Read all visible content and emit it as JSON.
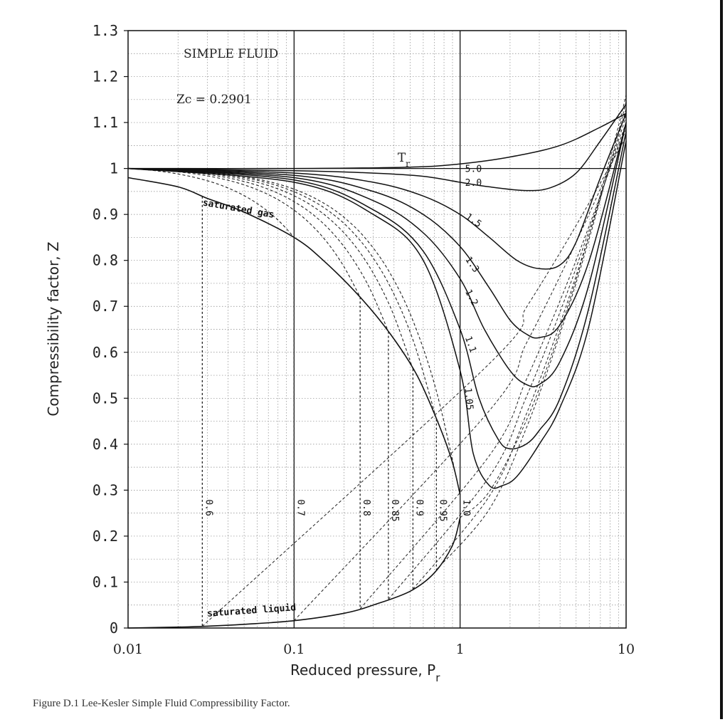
{
  "chart_data": {
    "type": "line",
    "x_scale": "log",
    "xlim": [
      0.01,
      10
    ],
    "ylim": [
      0,
      1.3
    ],
    "x_ticks": [
      "0.01",
      "0.1",
      "1",
      "10"
    ],
    "y_ticks": [
      "0",
      "0.1",
      "0.2",
      "0.3",
      "0.4",
      "0.5",
      "0.6",
      "0.7",
      "0.8",
      "0.9",
      "1",
      "1.1",
      "1.2",
      "1.3"
    ],
    "xlabel": "Reduced pressure, P",
    "xlabel_sub": "r",
    "ylabel": "Compressibility factor, Z",
    "title": "SIMPLE FLUID",
    "zc_label": "Zc = 0.2901",
    "tr_label": "T",
    "tr_label_sub": "r",
    "saturated_gas_label": "saturated gas",
    "saturated_liquid_label": "saturated liquid",
    "caption": "Figure D.1   Lee-Kesler Simple Fluid Compressibility Factor.",
    "saturated_gas": {
      "x": [
        0.01,
        0.02,
        0.03,
        0.05,
        0.1,
        0.15,
        0.25,
        0.38,
        0.55,
        0.75,
        0.9,
        1.0
      ],
      "y": [
        0.98,
        0.96,
        0.935,
        0.905,
        0.85,
        0.8,
        0.72,
        0.64,
        0.55,
        0.44,
        0.36,
        0.29
      ]
    },
    "saturated_liquid": {
      "x": [
        0.01,
        0.02,
        0.03,
        0.05,
        0.1,
        0.2,
        0.3,
        0.5,
        0.7,
        0.9,
        1.0
      ],
      "y": [
        0.0,
        0.002,
        0.004,
        0.008,
        0.016,
        0.032,
        0.05,
        0.08,
        0.12,
        0.18,
        0.24
      ]
    },
    "subcritical_isotherms": [
      {
        "tr": "0.6",
        "psat": 0.028
      },
      {
        "tr": "0.7",
        "psat": 0.1
      },
      {
        "tr": "0.8",
        "psat": 0.25
      },
      {
        "tr": "0.85",
        "psat": 0.37
      },
      {
        "tr": "0.9",
        "psat": 0.52
      },
      {
        "tr": "0.95",
        "psat": 0.72
      },
      {
        "tr": "1.0",
        "psat": 1.0
      }
    ],
    "supercritical_isotherms": [
      {
        "tr": "5.0",
        "x": [
          0.01,
          0.1,
          0.5,
          1,
          2,
          4,
          7,
          10
        ],
        "y": [
          1.0,
          1.0,
          1.003,
          1.01,
          1.025,
          1.05,
          1.09,
          1.12
        ]
      },
      {
        "tr": "2.0",
        "x": [
          0.01,
          0.1,
          0.3,
          0.6,
          1,
          1.5,
          2.5,
          3.5,
          5,
          7,
          10
        ],
        "y": [
          1.0,
          0.995,
          0.99,
          0.983,
          0.97,
          0.96,
          0.952,
          0.958,
          0.99,
          1.06,
          1.14
        ]
      },
      {
        "tr": "1.5",
        "x": [
          0.01,
          0.1,
          0.3,
          0.6,
          1,
          1.5,
          2.2,
          3,
          4,
          5,
          7,
          10
        ],
        "y": [
          1.0,
          0.99,
          0.97,
          0.94,
          0.9,
          0.85,
          0.8,
          0.782,
          0.79,
          0.84,
          0.98,
          1.12
        ]
      },
      {
        "tr": "1.3",
        "x": [
          0.01,
          0.1,
          0.3,
          0.6,
          1,
          1.5,
          2,
          2.5,
          3,
          4,
          6,
          10
        ],
        "y": [
          1.0,
          0.985,
          0.95,
          0.9,
          0.83,
          0.74,
          0.67,
          0.64,
          0.632,
          0.66,
          0.8,
          1.1
        ]
      },
      {
        "tr": "1.2",
        "x": [
          0.01,
          0.1,
          0.3,
          0.6,
          1,
          1.4,
          2,
          2.5,
          3,
          4,
          6,
          10
        ],
        "y": [
          1.0,
          0.98,
          0.93,
          0.86,
          0.76,
          0.65,
          0.56,
          0.53,
          0.53,
          0.58,
          0.75,
          1.1
        ]
      },
      {
        "tr": "1.1",
        "x": [
          0.01,
          0.1,
          0.3,
          0.6,
          1,
          1.3,
          1.7,
          2,
          2.5,
          3,
          4,
          6,
          10
        ],
        "y": [
          1.0,
          0.975,
          0.91,
          0.82,
          0.65,
          0.5,
          0.41,
          0.39,
          0.4,
          0.43,
          0.5,
          0.7,
          1.08
        ]
      },
      {
        "tr": "1.05",
        "x": [
          0.01,
          0.1,
          0.3,
          0.6,
          1,
          1.2,
          1.5,
          1.8,
          2.2,
          3,
          4,
          6,
          10
        ],
        "y": [
          1.0,
          0.97,
          0.9,
          0.8,
          0.56,
          0.38,
          0.31,
          0.31,
          0.33,
          0.4,
          0.48,
          0.66,
          1.06
        ]
      }
    ]
  }
}
